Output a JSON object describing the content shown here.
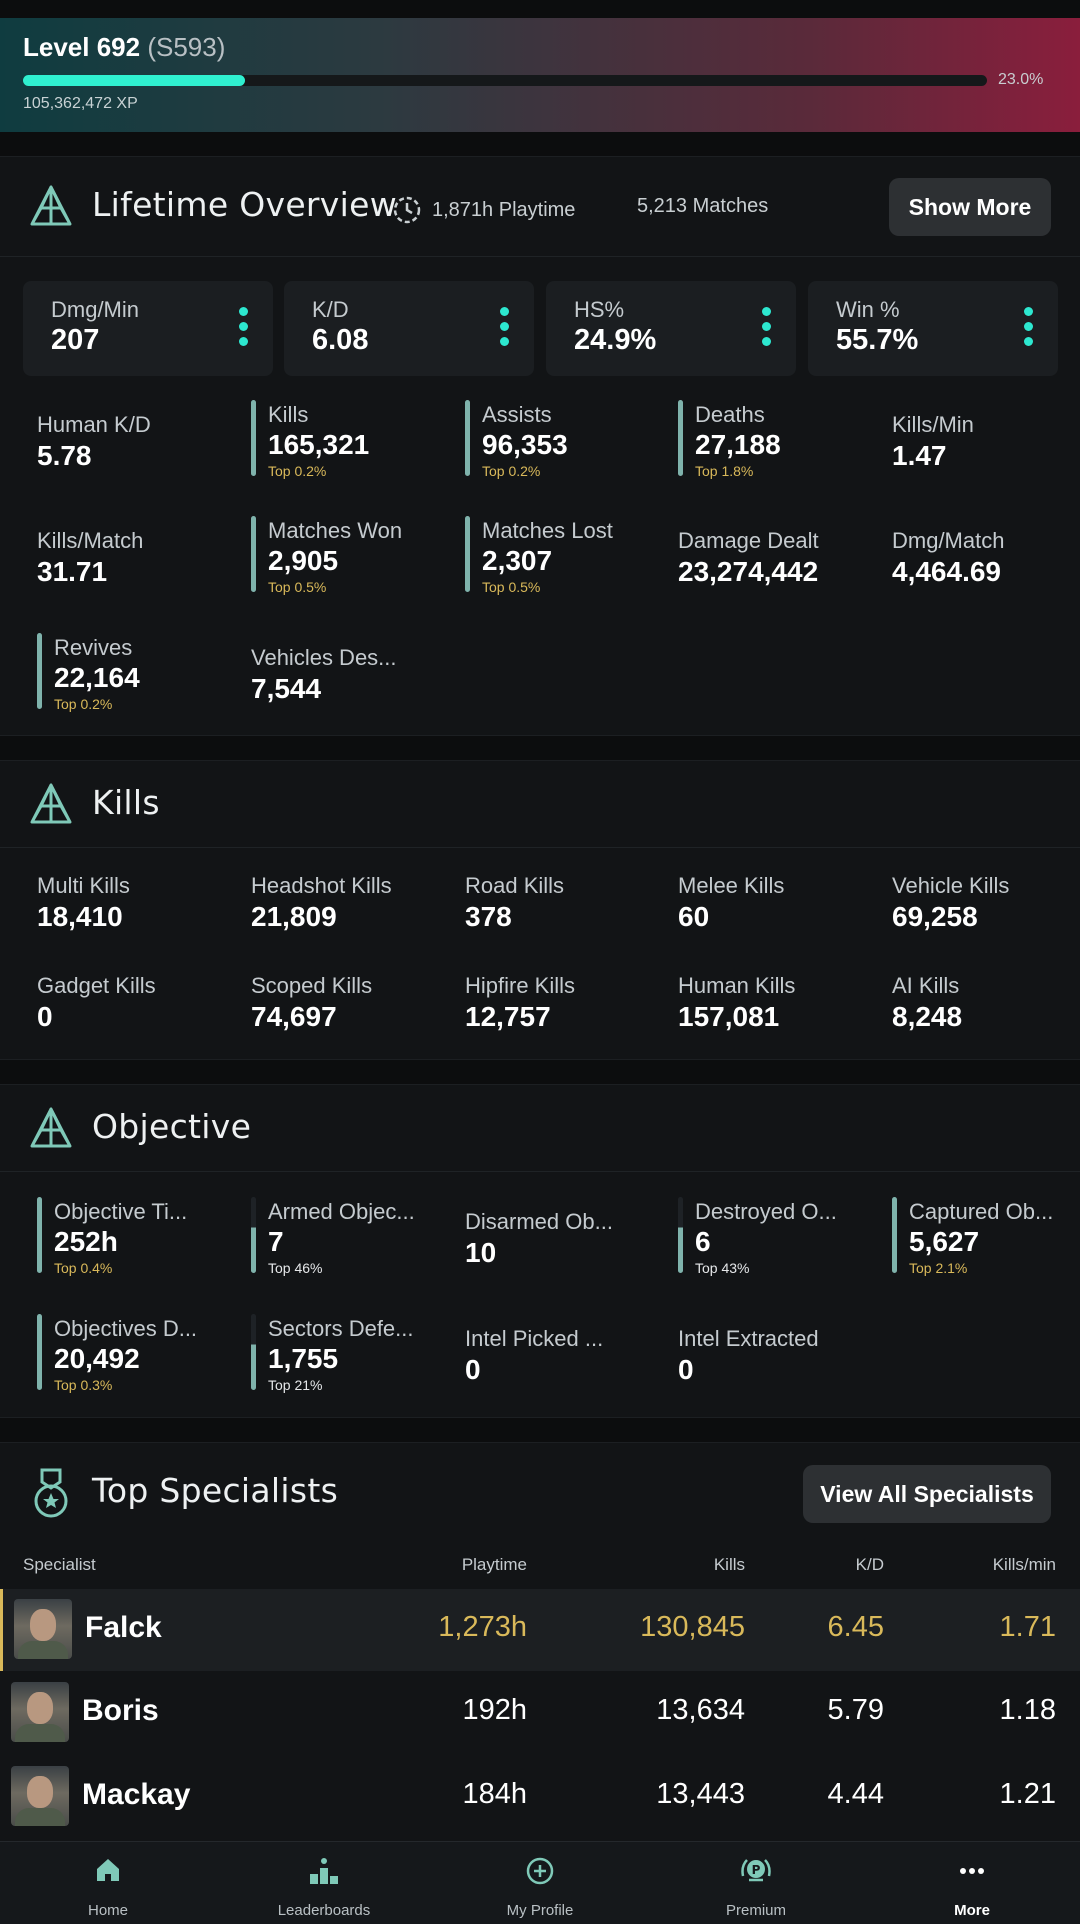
{
  "level": {
    "title": "Level 692",
    "season": "(S593)",
    "progress_pct_label": "23.0%",
    "progress": 0.23,
    "xp": "105,362,472 XP"
  },
  "overview": {
    "title": "Lifetime Overview",
    "playtime": "1,871h Playtime",
    "matches": "5,213 Matches",
    "show_more": "Show More",
    "cards": [
      {
        "label": "Dmg/Min",
        "value": "207"
      },
      {
        "label": "K/D",
        "value": "6.08"
      },
      {
        "label": "HS%",
        "value": "24.9%"
      },
      {
        "label": "Win %",
        "value": "55.7%"
      }
    ],
    "stats": [
      {
        "label": "Human K/D",
        "value": "5.78",
        "rank": ""
      },
      {
        "label": "Kills",
        "value": "165,321",
        "rank": "Top 0.2%"
      },
      {
        "label": "Assists",
        "value": "96,353",
        "rank": "Top 0.2%"
      },
      {
        "label": "Deaths",
        "value": "27,188",
        "rank": "Top 1.8%"
      },
      {
        "label": "Kills/Min",
        "value": "1.47",
        "rank": ""
      },
      {
        "label": "Kills/Match",
        "value": "31.71",
        "rank": ""
      },
      {
        "label": "Matches Won",
        "value": "2,905",
        "rank": "Top 0.5%"
      },
      {
        "label": "Matches Lost",
        "value": "2,307",
        "rank": "Top 0.5%"
      },
      {
        "label": "Damage Dealt",
        "value": "23,274,442",
        "rank": ""
      },
      {
        "label": "Dmg/Match",
        "value": "4,464.69",
        "rank": ""
      },
      {
        "label": "Revives",
        "value": "22,164",
        "rank": "Top 0.2%"
      },
      {
        "label": "Vehicles Des...",
        "value": "7,544",
        "rank": ""
      }
    ]
  },
  "kills": {
    "title": "Kills",
    "stats": [
      {
        "label": "Multi Kills",
        "value": "18,410"
      },
      {
        "label": "Headshot Kills",
        "value": "21,809"
      },
      {
        "label": "Road Kills",
        "value": "378"
      },
      {
        "label": "Melee Kills",
        "value": "60"
      },
      {
        "label": "Vehicle Kills",
        "value": "69,258"
      },
      {
        "label": "Gadget Kills",
        "value": "0"
      },
      {
        "label": "Scoped Kills",
        "value": "74,697"
      },
      {
        "label": "Hipfire Kills",
        "value": "12,757"
      },
      {
        "label": "Human Kills",
        "value": "157,081"
      },
      {
        "label": "AI Kills",
        "value": "8,248"
      }
    ]
  },
  "objective": {
    "title": "Objective",
    "stats": [
      {
        "label": "Objective Ti...",
        "value": "252h",
        "rank": "Top 0.4%"
      },
      {
        "label": "Armed Objec...",
        "value": "7",
        "rank": "Top 46%"
      },
      {
        "label": "Disarmed Ob...",
        "value": "10",
        "rank": ""
      },
      {
        "label": "Destroyed O...",
        "value": "6",
        "rank": "Top 43%"
      },
      {
        "label": "Captured Ob...",
        "value": "5,627",
        "rank": "Top 2.1%"
      },
      {
        "label": "Objectives D...",
        "value": "20,492",
        "rank": "Top 0.3%"
      },
      {
        "label": "Sectors Defe...",
        "value": "1,755",
        "rank": "Top 21%"
      },
      {
        "label": "Intel Picked ...",
        "value": "0",
        "rank": ""
      },
      {
        "label": "Intel Extracted",
        "value": "0",
        "rank": ""
      }
    ]
  },
  "specialists": {
    "title": "Top Specialists",
    "view_all": "View All Specialists",
    "headers": {
      "specialist": "Specialist",
      "playtime": "Playtime",
      "kills": "Kills",
      "kd": "K/D",
      "kpm": "Kills/min"
    },
    "rows": [
      {
        "name": "Falck",
        "playtime": "1,273h",
        "kills": "130,845",
        "kd": "6.45",
        "kpm": "1.71"
      },
      {
        "name": "Boris",
        "playtime": "192h",
        "kills": "13,634",
        "kd": "5.79",
        "kpm": "1.18"
      },
      {
        "name": "Mackay",
        "playtime": "184h",
        "kills": "13,443",
        "kd": "4.44",
        "kpm": "1.21"
      }
    ]
  },
  "nav": [
    {
      "label": "Home",
      "icon": "home-icon"
    },
    {
      "label": "Leaderboards",
      "icon": "leaderboards-icon"
    },
    {
      "label": "My Profile",
      "icon": "add-profile-icon"
    },
    {
      "label": "Premium",
      "icon": "premium-badge-icon"
    },
    {
      "label": "More",
      "icon": "more-dots-icon"
    }
  ],
  "colors": {
    "accent": "#2ff0d0",
    "gold": "#d9b95a",
    "rank_bar": "#7fb3ac"
  }
}
